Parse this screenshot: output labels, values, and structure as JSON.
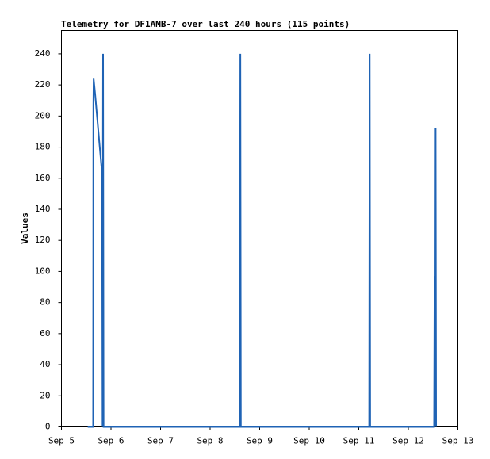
{
  "chart_data": {
    "type": "line",
    "title": "Telemetry for DF1AMB-7 over last 240 hours (115 points)",
    "ylabel": "Values",
    "x": [
      5.53,
      5.64,
      5.645,
      5.65,
      5.68,
      5.82,
      5.83,
      5.84,
      5.85,
      8.6,
      8.61,
      8.62,
      11.21,
      11.22,
      11.23,
      12.52,
      12.53,
      12.54,
      12.55,
      12.56
    ],
    "values": [
      0,
      0,
      207,
      224,
      214,
      163,
      0,
      240,
      0,
      0,
      240,
      0,
      0,
      240,
      0,
      0,
      97,
      0,
      192,
      0
    ],
    "color": "#1f63b5",
    "xlim": [
      5,
      13
    ],
    "xticks": [
      {
        "value": 5,
        "label": "Sep 5"
      },
      {
        "value": 6,
        "label": "Sep 6"
      },
      {
        "value": 7,
        "label": "Sep 7"
      },
      {
        "value": 8,
        "label": "Sep 8"
      },
      {
        "value": 9,
        "label": "Sep 9"
      },
      {
        "value": 10,
        "label": "Sep 10"
      },
      {
        "value": 11,
        "label": "Sep 11"
      },
      {
        "value": 12,
        "label": "Sep 12"
      },
      {
        "value": 13,
        "label": "Sep 13"
      }
    ],
    "ylim": [
      0,
      255
    ],
    "yticks": [
      0,
      20,
      40,
      60,
      80,
      100,
      120,
      140,
      160,
      180,
      200,
      220,
      240
    ],
    "grid": false
  }
}
